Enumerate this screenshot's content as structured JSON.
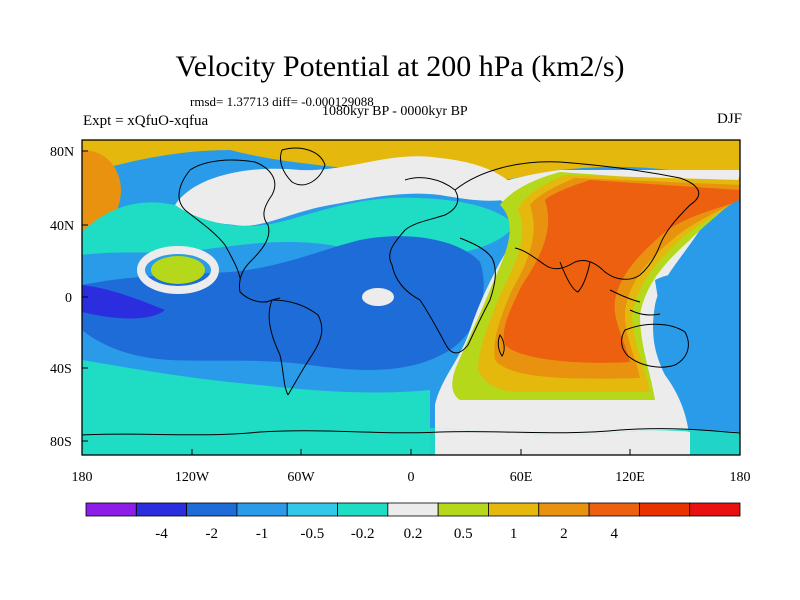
{
  "title": "Velocity Potential at 200 hPa (km2/s)",
  "stats": "rmsd= 1.37713 diff= -0.000129088",
  "period": "1080kyr BP - 0000kyr BP",
  "experiment": "Expt = xQfuO-xqfua",
  "season": "DJF",
  "map": {
    "lat_ticks": [
      "80N",
      "40N",
      "0",
      "40S",
      "80S"
    ],
    "lon_ticks": [
      "180",
      "120W",
      "60W",
      "0",
      "60E",
      "120E",
      "180"
    ]
  },
  "colorbar": {
    "colors": [
      "#8c1ee8",
      "#2d2de0",
      "#1e6cd8",
      "#2a9be8",
      "#33c8e8",
      "#1fdcc4",
      "#ececec",
      "#b5d81a",
      "#e4b80c",
      "#e89210",
      "#ec6010",
      "#e83200",
      "#e81010"
    ],
    "labels": [
      "-4",
      "-2",
      "-1",
      "-0.5",
      "-0.2",
      "0.2",
      "0.5",
      "1",
      "2",
      "4"
    ]
  }
}
